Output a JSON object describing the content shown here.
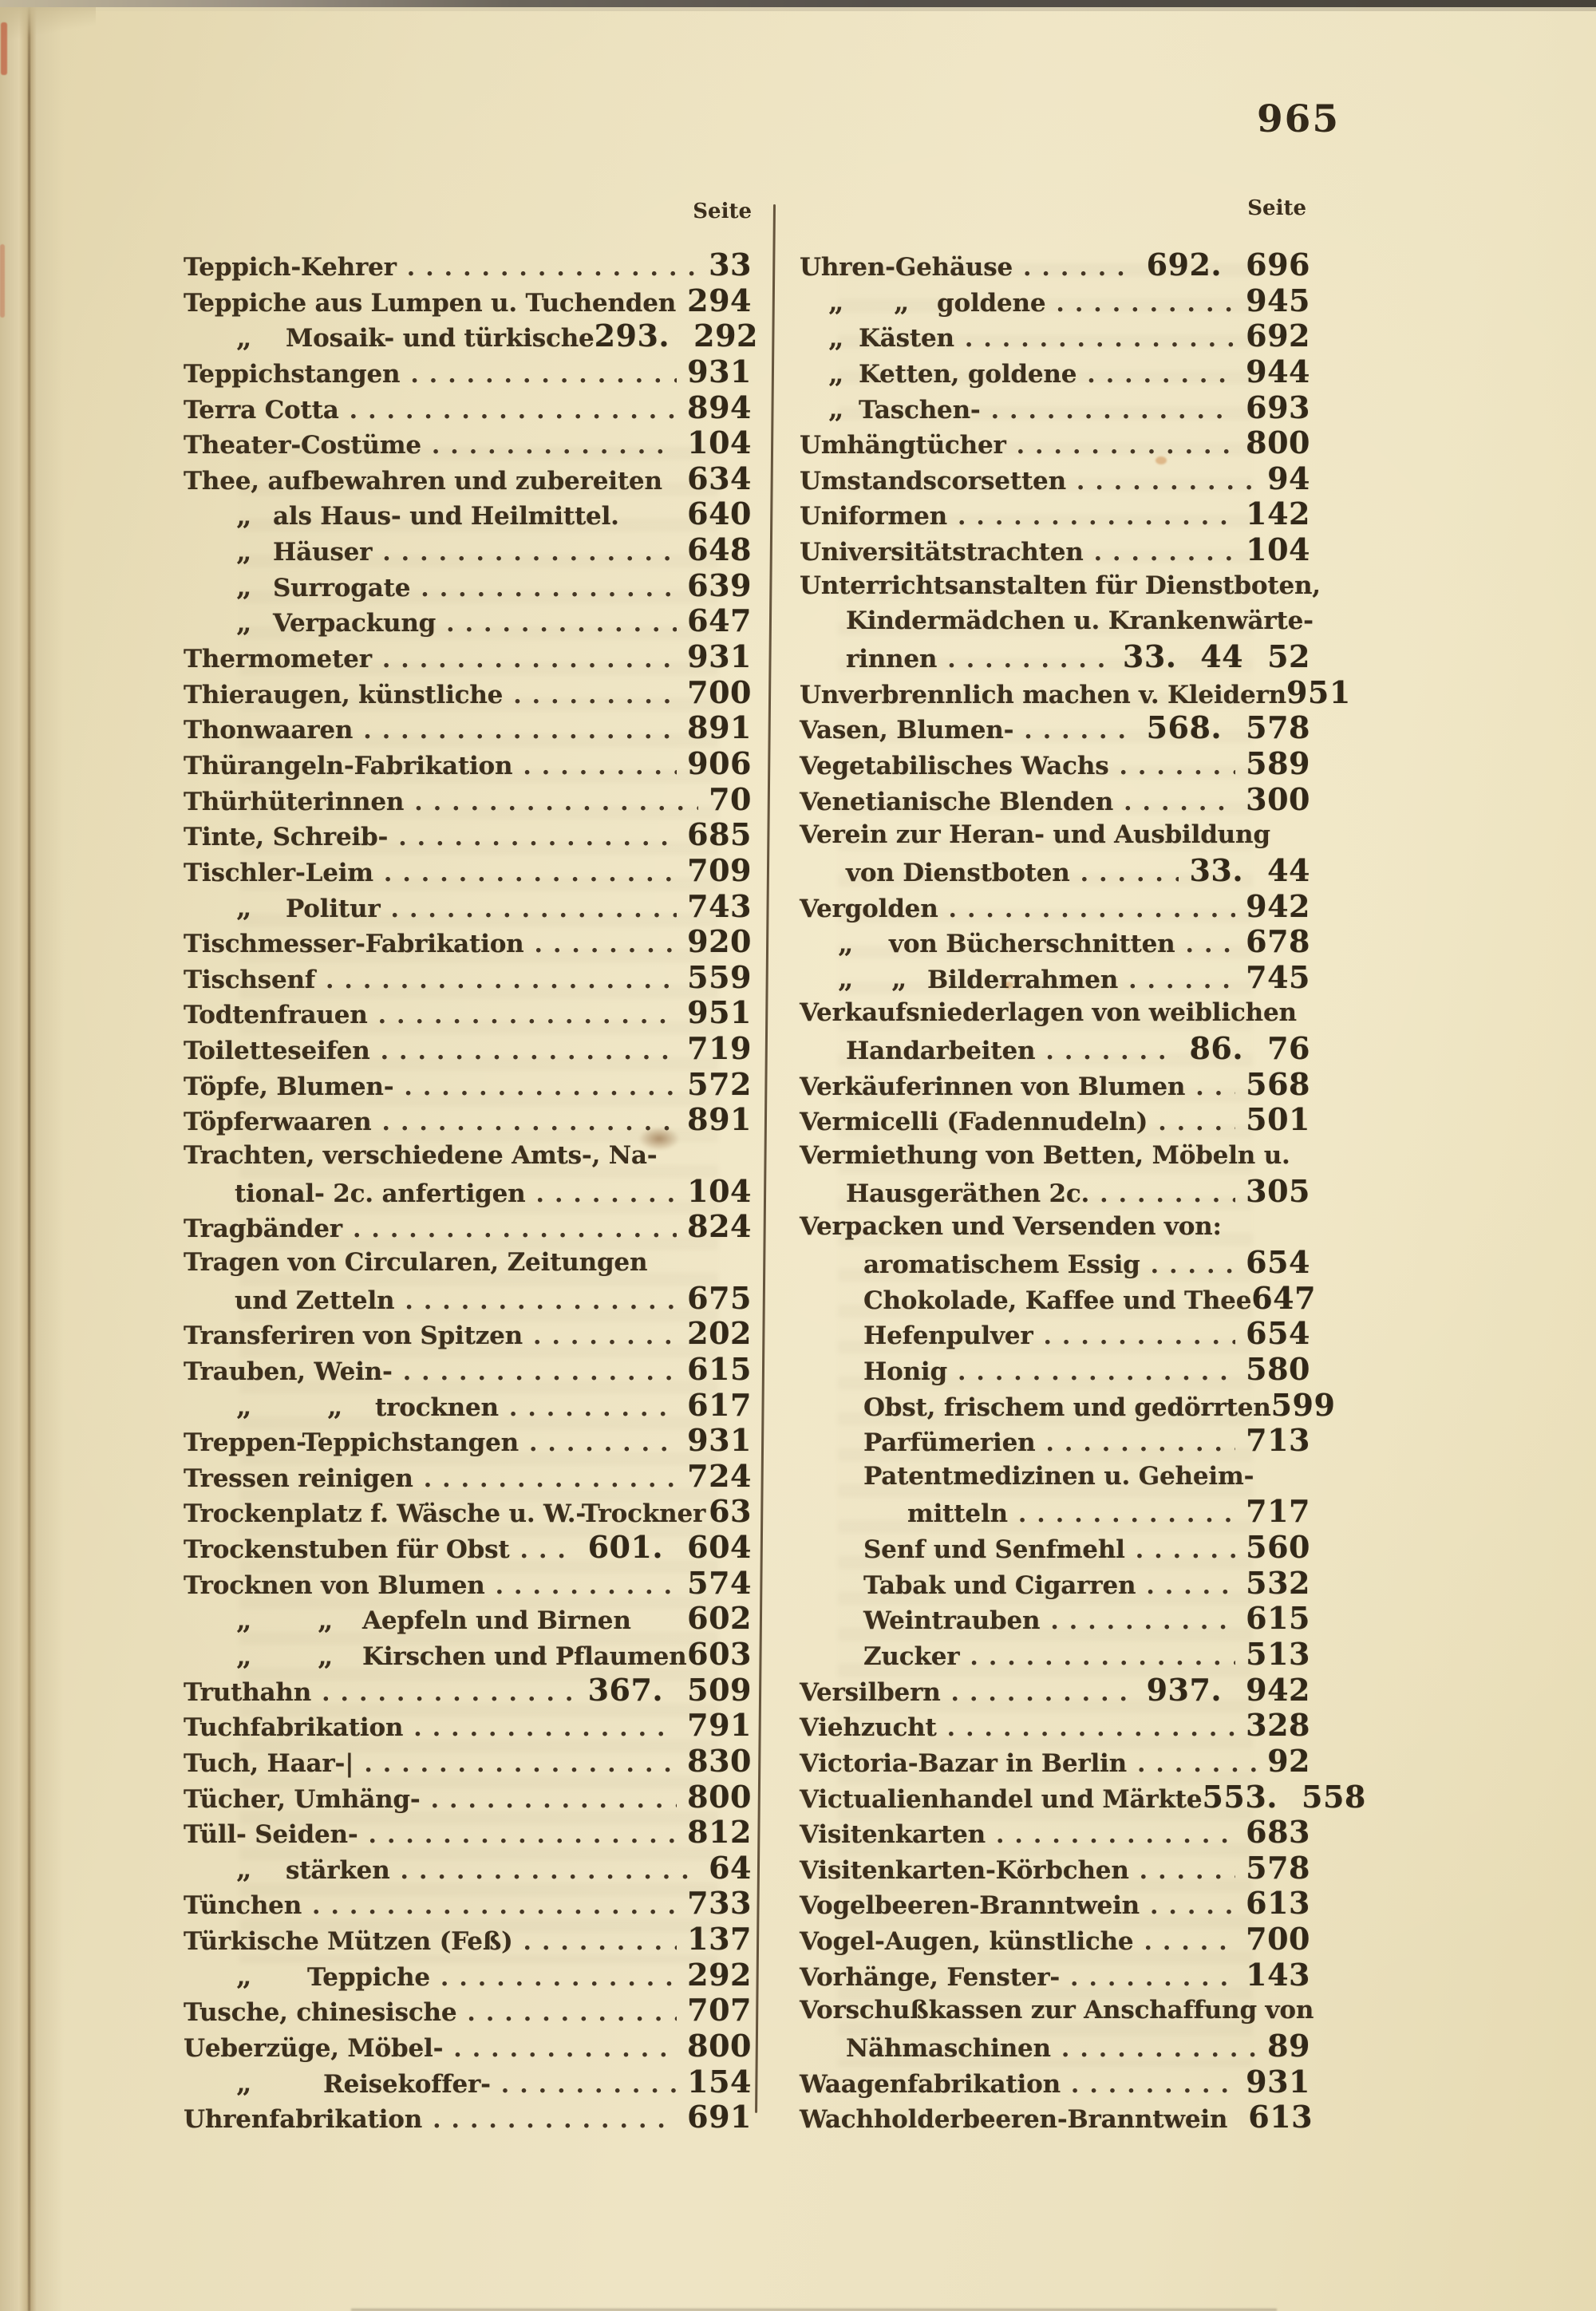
{
  "page": {
    "folio": "965"
  },
  "colors": {
    "paper": "#ece2c0",
    "ink": "#3c2f1d",
    "divider": "#4c3b25"
  },
  "left_column": {
    "header": "Seite",
    "items": [
      {
        "t": "Teppich-Kehrer",
        "d": 1,
        "n": "33"
      },
      {
        "t": "Teppiche aus Lumpen u. Tuchenden",
        "n": "294"
      },
      {
        "q": [
          66
        ],
        "ti": 128,
        "t": "Mosaik- und türkische",
        "pre": "293.",
        "n": "292"
      },
      {
        "t": "Teppichstangen",
        "d": 1,
        "n": "931"
      },
      {
        "t": "Terra Cotta",
        "d": 1,
        "n": "894"
      },
      {
        "t": "Theater-Costüme",
        "d": 1,
        "n": "104"
      },
      {
        "t": "Thee, aufbewahren und zubereiten",
        "n": "634"
      },
      {
        "q": [
          66
        ],
        "ti": 112,
        "t": "als Haus- und Heilmittel.",
        "n": "640"
      },
      {
        "q": [
          66
        ],
        "ti": 112,
        "t": "Häuser",
        "d": 1,
        "n": "648"
      },
      {
        "q": [
          66
        ],
        "ti": 112,
        "t": "Surrogate",
        "d": 1,
        "n": "639"
      },
      {
        "q": [
          66
        ],
        "ti": 112,
        "t": "Verpackung",
        "d": 1,
        "n": "647"
      },
      {
        "t": "Thermometer",
        "d": 1,
        "n": "931"
      },
      {
        "t": "Thieraugen, künstliche",
        "d": 1,
        "n": "700"
      },
      {
        "t": "Thonwaaren",
        "d": 1,
        "n": "891"
      },
      {
        "t": "Thürangeln-Fabrikation",
        "d": 1,
        "n": "906"
      },
      {
        "t": "Thürhüterinnen",
        "d": 1,
        "n": "70"
      },
      {
        "t": "Tinte, Schreib-",
        "d": 1,
        "n": "685"
      },
      {
        "t": "Tischler-Leim",
        "d": 1,
        "n": "709"
      },
      {
        "q": [
          66
        ],
        "ti": 128,
        "t": "Politur",
        "d": 1,
        "n": "743"
      },
      {
        "t": "Tischmesser-Fabrikation",
        "d": 1,
        "n": "920"
      },
      {
        "t": "Tischsenf",
        "d": 1,
        "n": "559"
      },
      {
        "t": "Todtenfrauen",
        "d": 1,
        "n": "951"
      },
      {
        "t": "Toiletteseifen",
        "d": 1,
        "n": "719"
      },
      {
        "t": "Töpfe, Blumen-",
        "d": 1,
        "n": "572"
      },
      {
        "t": "Töpferwaaren",
        "d": 1,
        "n": "891"
      },
      {
        "t": "Trachten, verschiedene Amts-, Na-"
      },
      {
        "ti": 64,
        "t": "tional- 2c. anfertigen",
        "d": 1,
        "n": "104"
      },
      {
        "t": "Tragbänder",
        "d": 1,
        "n": "824"
      },
      {
        "t": "Tragen von Circularen, Zeitungen"
      },
      {
        "ti": 64,
        "t": "und Zetteln",
        "d": 1,
        "n": "675"
      },
      {
        "t": "Transferiren von Spitzen",
        "d": 1,
        "n": "202"
      },
      {
        "t": "Trauben, Wein-",
        "d": 1,
        "n": "615"
      },
      {
        "q": [
          66,
          180
        ],
        "ti": 240,
        "t": "trocknen",
        "d": 1,
        "n": "617"
      },
      {
        "t": "Treppen-Teppichstangen",
        "d": 1,
        "n": "931"
      },
      {
        "t": "Tressen reinigen",
        "d": 1,
        "n": "724"
      },
      {
        "t": "Trockenplatz f. Wäsche u. W.-Trockner",
        "n": "63"
      },
      {
        "t": "Trockenstuben für Obst",
        "d": 1,
        "pre": "601.",
        "n": "604"
      },
      {
        "t": "Trocknen von Blumen",
        "d": 1,
        "n": "574"
      },
      {
        "q": [
          66,
          168
        ],
        "ti": 224,
        "t": "Aepfeln und Birnen",
        "n": "602"
      },
      {
        "q": [
          66,
          168
        ],
        "ti": 224,
        "t": "Kirschen und Pflaumen",
        "n": "603"
      },
      {
        "t": "Truthahn",
        "d": 1,
        "pre": "367.",
        "n": "509"
      },
      {
        "t": "Tuchfabrikation",
        "d": 1,
        "n": "791"
      },
      {
        "t": "Tuch, Haar-|",
        "d": 1,
        "n": "830"
      },
      {
        "t": "Tücher, Umhäng-",
        "d": 1,
        "n": "800"
      },
      {
        "t": "Tüll- Seiden-",
        "d": 1,
        "n": "812"
      },
      {
        "q": [
          66
        ],
        "ti": 128,
        "t": "stärken",
        "d": 1,
        "n": "64"
      },
      {
        "t": "Tünchen",
        "d": 1,
        "n": "733"
      },
      {
        "t": "Türkische Mützen (Feß)",
        "d": 1,
        "n": "137"
      },
      {
        "q": [
          66
        ],
        "ti": 155,
        "t": "Teppiche",
        "d": 1,
        "n": "292"
      },
      {
        "t": "Tusche, chinesische",
        "d": 1,
        "n": "707"
      },
      {
        "t": "Ueberzüge, Möbel-",
        "d": 1,
        "n": "800"
      },
      {
        "q": [
          66
        ],
        "ti": 175,
        "t": "Reisekoffer-",
        "d": 1,
        "n": "154"
      },
      {
        "t": "Uhrenfabrikation",
        "d": 1,
        "n": "691"
      }
    ]
  },
  "right_column": {
    "header": "Seite",
    "items": [
      {
        "t": "Uhren-Gehäuse",
        "d": 1,
        "pre": "692.",
        "n": "696"
      },
      {
        "q": [
          36,
          118
        ],
        "ti": 172,
        "t": "goldene",
        "d": 1,
        "n": "945"
      },
      {
        "q": [
          36
        ],
        "ti": 74,
        "t": "Kästen",
        "d": 1,
        "n": "692"
      },
      {
        "q": [
          36
        ],
        "ti": 74,
        "t": "Ketten, goldene",
        "d": 1,
        "n": "944"
      },
      {
        "q": [
          36
        ],
        "ti": 74,
        "t": "Taschen-",
        "d": 1,
        "n": "693"
      },
      {
        "t": "Umhängtücher",
        "d": 1,
        "n": "800"
      },
      {
        "t": "Umstandscorsetten",
        "d": 1,
        "n": "94"
      },
      {
        "t": "Uniformen",
        "d": 1,
        "n": "142"
      },
      {
        "t": "Universitätstrachten",
        "d": 1,
        "n": "104"
      },
      {
        "t": "Unterrichtsanstalten für Dienstboten,"
      },
      {
        "ti": 58,
        "t": "Kindermädchen u. Krankenwärte-"
      },
      {
        "ti": 58,
        "t": "rinnen",
        "d": 1,
        "pre": "33. 44",
        "n": "52"
      },
      {
        "t": "Unverbrennlich machen v. Kleidern",
        "n": "951"
      },
      {
        "t": "Vasen, Blumen-",
        "d": 1,
        "pre": "568.",
        "n": "578"
      },
      {
        "t": "Vegetabilisches Wachs",
        "d": 1,
        "n": "589"
      },
      {
        "t": "Venetianische Blenden",
        "d": 1,
        "n": "300"
      },
      {
        "t": "Verein zur Heran- und Ausbildung"
      },
      {
        "ti": 58,
        "t": "von Dienstboten",
        "d": 1,
        "pre": "33.",
        "n": "44"
      },
      {
        "t": "Vergolden",
        "d": 1,
        "n": "942"
      },
      {
        "q": [
          48
        ],
        "ti": 112,
        "t": "von Bücherschnitten",
        "d": 1,
        "n": "678"
      },
      {
        "q": [
          48,
          115
        ],
        "ti": 160,
        "t": "Bilderrahmen",
        "d": 1,
        "n": "745"
      },
      {
        "t": "Verkaufsniederlagen von weiblichen"
      },
      {
        "ti": 58,
        "t": "Handarbeiten",
        "d": 1,
        "pre": "86.",
        "n": "76"
      },
      {
        "t": "Verkäuferinnen von Blumen",
        "d": 1,
        "n": "568"
      },
      {
        "t": "Vermicelli (Fadennudeln)",
        "d": 1,
        "n": "501"
      },
      {
        "t": "Vermiethung von Betten, Möbeln u."
      },
      {
        "ti": 58,
        "t": "Hausgeräthen 2c.",
        "d": 1,
        "n": "305"
      },
      {
        "t": "Verpacken und Versenden von:"
      },
      {
        "ti": 80,
        "t": "aromatischem Essig",
        "d": 1,
        "n": "654"
      },
      {
        "ti": 80,
        "t": "Chokolade, Kaffee und Thee",
        "n": "647"
      },
      {
        "ti": 80,
        "t": "Hefenpulver",
        "d": 1,
        "n": "654"
      },
      {
        "ti": 80,
        "t": "Honig",
        "d": 1,
        "n": "580"
      },
      {
        "ti": 80,
        "t": "Obst, frischem und gedörrten",
        "n": "599"
      },
      {
        "ti": 80,
        "t": "Parfümerien",
        "d": 1,
        "n": "713"
      },
      {
        "ti": 80,
        "t": "Patentmedizinen u. Geheim-"
      },
      {
        "ti": 135,
        "t": "mitteln",
        "d": 1,
        "n": "717"
      },
      {
        "ti": 80,
        "t": "Senf und Senfmehl",
        "d": 1,
        "n": "560"
      },
      {
        "ti": 80,
        "t": "Tabak und Cigarren",
        "d": 1,
        "n": "532"
      },
      {
        "ti": 80,
        "t": "Weintrauben",
        "d": 1,
        "n": "615"
      },
      {
        "ti": 80,
        "t": "Zucker",
        "d": 1,
        "n": "513"
      },
      {
        "t": "Versilbern",
        "d": 1,
        "pre": "937.",
        "n": "942"
      },
      {
        "t": "Viehzucht",
        "d": 1,
        "n": "328"
      },
      {
        "t": "Victoria-Bazar in Berlin",
        "d": 1,
        "n": "92"
      },
      {
        "t": "Victualienhandel und Märkte",
        "pre": "553.",
        "n": "558"
      },
      {
        "t": "Visitenkarten",
        "d": 1,
        "n": "683"
      },
      {
        "t": "Visitenkarten-Körbchen",
        "d": 1,
        "n": "578"
      },
      {
        "t": "Vogelbeeren-Branntwein",
        "d": 1,
        "n": "613"
      },
      {
        "t": "Vogel-Augen, künstliche",
        "d": 1,
        "n": "700"
      },
      {
        "t": "Vorhänge, Fenster-",
        "d": 1,
        "n": "143"
      },
      {
        "t": "Vorschußkassen zur Anschaffung von"
      },
      {
        "ti": 58,
        "t": "Nähmaschinen",
        "d": 1,
        "n": "89"
      },
      {
        "t": "Waagenfabrikation",
        "d": 1,
        "n": "931"
      },
      {
        "t": "Wachholderbeeren-Branntwein",
        "d": 1,
        "n": "613"
      }
    ]
  }
}
